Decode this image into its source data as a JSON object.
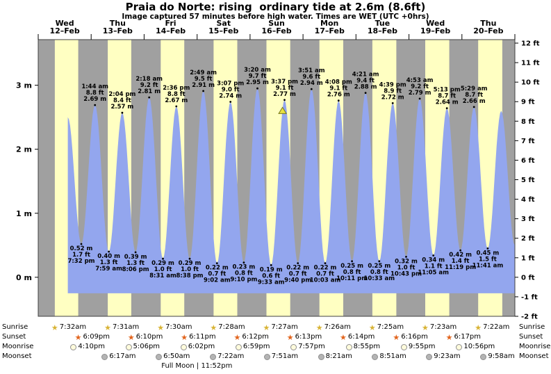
{
  "title": "Praia do Norte: rising  ordinary tide at 2.6m (8.6ft)",
  "subtitle": "Image captured 57 minutes before high water. Times are WET (UTC +0hrs)",
  "colors": {
    "day_band": "#ffffc2",
    "night_band": "#a0a0a0",
    "tide_fill": "#93a6ee",
    "day_label": "#e00000",
    "current_marker_fill": "#e8e240",
    "current_marker_stroke": "#76761c",
    "plot_border": "#404040"
  },
  "chart_data": {
    "type": "area",
    "title": "Praia do Norte: rising  ordinary tide at 2.6m (8.6ft)",
    "subtitle": "Image captured 57 minutes before high water. Times are WET (UTC +0hrs)",
    "y_axis_left_unit": "m",
    "y_axis_right_unit": "ft",
    "y_ticks_m": [
      0,
      1,
      2,
      3
    ],
    "y_ticks_ft": [
      -2,
      -1,
      0,
      1,
      2,
      3,
      4,
      5,
      6,
      7,
      8,
      9,
      10,
      11,
      12
    ],
    "ylim_m": [
      -0.62,
      3.72
    ],
    "days": [
      {
        "dow": "Wed",
        "date": "12–Feb"
      },
      {
        "dow": "Thu",
        "date": "13–Feb"
      },
      {
        "dow": "Fri",
        "date": "14–Feb"
      },
      {
        "dow": "Sat",
        "date": "15–Feb"
      },
      {
        "dow": "Sun",
        "date": "16–Feb"
      },
      {
        "dow": "Mon",
        "date": "17–Feb"
      },
      {
        "dow": "Tue",
        "date": "18–Feb"
      },
      {
        "dow": "Wed",
        "date": "19–Feb"
      },
      {
        "dow": "Thu",
        "date": "20–Feb"
      }
    ],
    "tides": [
      {
        "day": 0,
        "hour": 19.53,
        "type": "low",
        "time": "7:32 pm",
        "ft": "1.7 ft",
        "m": "0.52 m",
        "val": 0.52
      },
      {
        "day": 1,
        "hour": 1.73,
        "type": "high",
        "time": "1:44 am",
        "ft": "8.8 ft",
        "m": "2.69 m",
        "val": 2.69
      },
      {
        "day": 1,
        "hour": 7.98,
        "type": "low",
        "time": "7:59 am",
        "ft": "1.3 ft",
        "m": "0.40 m",
        "val": 0.4
      },
      {
        "day": 1,
        "hour": 14.07,
        "type": "high",
        "time": "2:04 pm",
        "ft": "8.4 ft",
        "m": "2.57 m",
        "val": 2.57
      },
      {
        "day": 1,
        "hour": 20.1,
        "type": "low",
        "time": "8:06 pm",
        "ft": "1.3 ft",
        "m": "0.39 m",
        "val": 0.39
      },
      {
        "day": 2,
        "hour": 2.3,
        "type": "high",
        "time": "2:18 am",
        "ft": "9.2 ft",
        "m": "2.81 m",
        "val": 2.81
      },
      {
        "day": 2,
        "hour": 8.52,
        "type": "low",
        "time": "8:31 am",
        "ft": "1.0 ft",
        "m": "0.29 m",
        "val": 0.29
      },
      {
        "day": 2,
        "hour": 14.6,
        "type": "high",
        "time": "2:36 pm",
        "ft": "8.8 ft",
        "m": "2.67 m",
        "val": 2.67
      },
      {
        "day": 2,
        "hour": 20.63,
        "type": "low",
        "time": "8:38 pm",
        "ft": "1.0 ft",
        "m": "0.29 m",
        "val": 0.29
      },
      {
        "day": 3,
        "hour": 2.82,
        "type": "high",
        "time": "2:49 am",
        "ft": "9.5 ft",
        "m": "2.91 m",
        "val": 2.91
      },
      {
        "day": 3,
        "hour": 9.03,
        "type": "low",
        "time": "9:02 am",
        "ft": "0.7 ft",
        "m": "0.22 m",
        "val": 0.22
      },
      {
        "day": 3,
        "hour": 15.12,
        "type": "high",
        "time": "3:07 pm",
        "ft": "9.0 ft",
        "m": "2.74 m",
        "val": 2.74
      },
      {
        "day": 3,
        "hour": 21.17,
        "type": "low",
        "time": "9:10 pm",
        "ft": "0.8 ft",
        "m": "0.23 m",
        "val": 0.23
      },
      {
        "day": 4,
        "hour": 3.33,
        "type": "high",
        "time": "3:20 am",
        "ft": "9.7 ft",
        "m": "2.95 m",
        "val": 2.95
      },
      {
        "day": 4,
        "hour": 9.55,
        "type": "low",
        "time": "9:33 am",
        "ft": "0.6 ft",
        "m": "0.19 m",
        "val": 0.19
      },
      {
        "day": 4,
        "hour": 15.62,
        "type": "high",
        "time": "3:37 pm",
        "ft": "9.1 ft",
        "m": "2.77 m",
        "val": 2.77,
        "current": true
      },
      {
        "day": 4,
        "hour": 21.67,
        "type": "low",
        "time": "9:40 pm",
        "ft": "0.7 ft",
        "m": "0.22 m",
        "val": 0.22
      },
      {
        "day": 5,
        "hour": 3.85,
        "type": "high",
        "time": "3:51 am",
        "ft": "9.6 ft",
        "m": "2.94 m",
        "val": 2.94
      },
      {
        "day": 5,
        "hour": 10.05,
        "type": "low",
        "time": "10:03 am",
        "ft": "0.7 ft",
        "m": "0.22 m",
        "val": 0.22
      },
      {
        "day": 5,
        "hour": 16.13,
        "type": "high",
        "time": "4:08 pm",
        "ft": "9.1 ft",
        "m": "2.76 m",
        "val": 2.76
      },
      {
        "day": 5,
        "hour": 22.18,
        "type": "low",
        "time": "10:11 pm",
        "ft": "0.8 ft",
        "m": "0.25 m",
        "val": 0.25
      },
      {
        "day": 6,
        "hour": 4.35,
        "type": "high",
        "time": "4:21 am",
        "ft": "9.4 ft",
        "m": "2.88 m",
        "val": 2.88
      },
      {
        "day": 6,
        "hour": 10.55,
        "type": "low",
        "time": "10:33 am",
        "ft": "0.8 ft",
        "m": "0.25 m",
        "val": 0.25
      },
      {
        "day": 6,
        "hour": 16.65,
        "type": "high",
        "time": "4:39 pm",
        "ft": "8.9 ft",
        "m": "2.72 m",
        "val": 2.72
      },
      {
        "day": 6,
        "hour": 22.72,
        "type": "low",
        "time": "10:43 pm",
        "ft": "1.0 ft",
        "m": "0.32 m",
        "val": 0.32
      },
      {
        "day": 7,
        "hour": 4.88,
        "type": "high",
        "time": "4:53 am",
        "ft": "9.2 ft",
        "m": "2.79 m",
        "val": 2.79
      },
      {
        "day": 7,
        "hour": 11.08,
        "type": "low",
        "time": "11:05 am",
        "ft": "1.1 ft",
        "m": "0.34 m",
        "val": 0.34
      },
      {
        "day": 7,
        "hour": 17.22,
        "type": "high",
        "time": "5:13 pm",
        "ft": "8.7 ft",
        "m": "2.64 m",
        "val": 2.64
      },
      {
        "day": 7,
        "hour": 23.32,
        "type": "low",
        "time": "11:19 pm",
        "ft": "1.4 ft",
        "m": "0.42 m",
        "val": 0.42
      },
      {
        "day": 8,
        "hour": 5.48,
        "type": "high",
        "time": "5:29 am",
        "ft": "8.7 ft",
        "m": "2.66 m",
        "val": 2.66
      },
      {
        "day": 8,
        "hour": 11.68,
        "type": "low",
        "time": "11:41 am",
        "ft": "1.5 ft",
        "m": "0.45 m",
        "val": 0.45
      }
    ],
    "edge_points": [
      {
        "day": 0,
        "hour": 13.42,
        "m": 2.5
      },
      {
        "day": 8,
        "hour": 17.8,
        "m": 2.6
      },
      {
        "day": 8,
        "hour": 23.95,
        "m": 0.5
      }
    ],
    "current_position": {
      "day": 4,
      "hour": 14.7,
      "m": 2.6
    }
  },
  "astro": {
    "rows": [
      {
        "label": "Sunrise",
        "icon": "sunrise-star-icon",
        "style": "star",
        "color": "#d8b334",
        "events": [
          {
            "day": 0,
            "hour": 7.53,
            "time": "7:32am"
          },
          {
            "day": 1,
            "hour": 7.52,
            "time": "7:31am"
          },
          {
            "day": 2,
            "hour": 7.5,
            "time": "7:30am"
          },
          {
            "day": 3,
            "hour": 7.47,
            "time": "7:28am"
          },
          {
            "day": 4,
            "hour": 7.45,
            "time": "7:27am"
          },
          {
            "day": 5,
            "hour": 7.43,
            "time": "7:26am"
          },
          {
            "day": 6,
            "hour": 7.42,
            "time": "7:25am"
          },
          {
            "day": 7,
            "hour": 7.38,
            "time": "7:23am"
          },
          {
            "day": 8,
            "hour": 7.37,
            "time": "7:22am"
          }
        ]
      },
      {
        "label": "Sunset",
        "icon": "sunset-star-icon",
        "style": "star",
        "color": "#e2641c",
        "events": [
          {
            "day": 0,
            "hour": 18.15,
            "time": "6:09pm"
          },
          {
            "day": 1,
            "hour": 18.17,
            "time": "6:10pm"
          },
          {
            "day": 2,
            "hour": 18.18,
            "time": "6:11pm"
          },
          {
            "day": 3,
            "hour": 18.2,
            "time": "6:12pm"
          },
          {
            "day": 4,
            "hour": 18.22,
            "time": "6:13pm"
          },
          {
            "day": 5,
            "hour": 18.23,
            "time": "6:14pm"
          },
          {
            "day": 6,
            "hour": 18.27,
            "time": "6:16pm"
          },
          {
            "day": 7,
            "hour": 18.28,
            "time": "6:17pm"
          }
        ]
      },
      {
        "label": "Moonrise",
        "icon": "moonrise-circle-icon",
        "style": "circle",
        "color": "#fffbdc",
        "events": [
          {
            "day": 0,
            "hour": 16.17,
            "time": "4:10pm"
          },
          {
            "day": 1,
            "hour": 17.1,
            "time": "5:06pm"
          },
          {
            "day": 2,
            "hour": 18.03,
            "time": "6:02pm"
          },
          {
            "day": 3,
            "hour": 18.98,
            "time": "6:59pm"
          },
          {
            "day": 4,
            "hour": 19.95,
            "time": "7:57pm"
          },
          {
            "day": 5,
            "hour": 20.92,
            "time": "8:55pm"
          },
          {
            "day": 6,
            "hour": 21.92,
            "time": "9:55pm"
          },
          {
            "day": 7,
            "hour": 22.93,
            "time": "10:56pm"
          }
        ]
      },
      {
        "label": "Moonset",
        "icon": "moonset-circle-icon",
        "style": "circle",
        "color": "#b4b4b4",
        "events": [
          {
            "day": 1,
            "hour": 6.28,
            "time": "6:17am"
          },
          {
            "day": 2,
            "hour": 6.83,
            "time": "6:50am"
          },
          {
            "day": 3,
            "hour": 7.37,
            "time": "7:22am"
          },
          {
            "day": 4,
            "hour": 7.85,
            "time": "7:51am"
          },
          {
            "day": 5,
            "hour": 8.35,
            "time": "8:21am"
          },
          {
            "day": 6,
            "hour": 8.85,
            "time": "8:51am"
          },
          {
            "day": 7,
            "hour": 9.38,
            "time": "9:23am"
          },
          {
            "day": 8,
            "hour": 9.97,
            "time": "9:58am"
          }
        ]
      }
    ],
    "full_moon": {
      "text": "Full Moon | 11:52pm",
      "day": 2,
      "hour": 23.87
    }
  }
}
